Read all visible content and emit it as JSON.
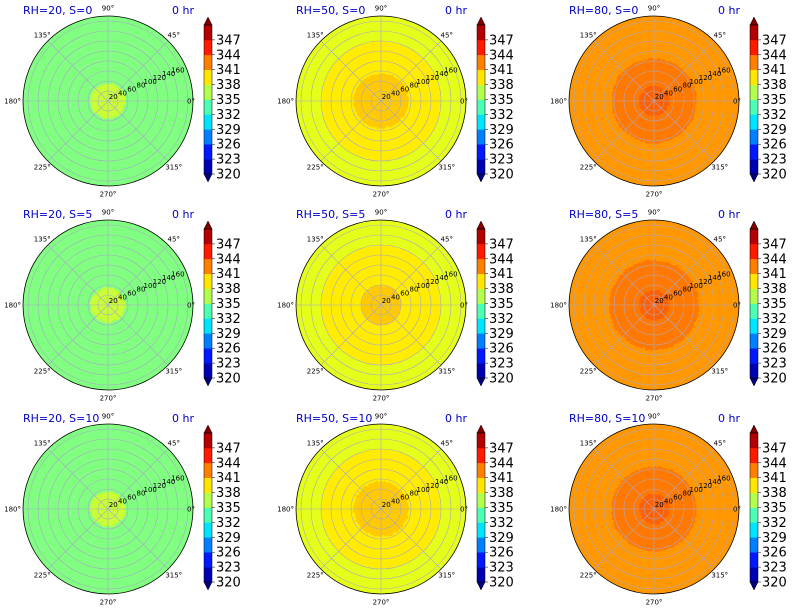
{
  "chart_data": {
    "type": "heatmap",
    "layout": "polar-grid",
    "rows": 3,
    "cols": 3,
    "angle_labels": [
      "90°",
      "45°",
      "0°",
      "315°",
      "270°",
      "225°",
      "180°",
      "135°"
    ],
    "radial_ticks": [
      20,
      40,
      60,
      80,
      100,
      120,
      140,
      160
    ],
    "radial_max": 170,
    "grid": true,
    "colorbar": {
      "ticks": [
        320,
        323,
        326,
        329,
        332,
        335,
        338,
        341,
        344,
        347
      ],
      "min": 320,
      "max": 350,
      "colormap": "jet",
      "extend": "both"
    },
    "panels": [
      {
        "title": "RH=20, S=0",
        "time": "0 hr",
        "regions": [
          {
            "r_max": 35,
            "value": 337.2
          },
          {
            "r_max": 170,
            "value": 335.0
          }
        ]
      },
      {
        "title": "RH=50, S=0",
        "time": "0 hr",
        "regions": [
          {
            "r_max": 55,
            "value": 340.3
          },
          {
            "r_max": 120,
            "value": 339.3
          },
          {
            "r_max": 170,
            "value": 338.0
          }
        ]
      },
      {
        "title": "RH=80, S=0",
        "time": "0 hr",
        "regions": [
          {
            "r_max": 30,
            "value": 343.4
          },
          {
            "r_max": 85,
            "value": 342.7
          },
          {
            "r_max": 170,
            "value": 341.8
          }
        ]
      },
      {
        "title": "RH=20, S=5",
        "time": "0 hr",
        "regions": [
          {
            "r_max": 35,
            "value": 337.2
          },
          {
            "r_max": 170,
            "value": 335.0
          }
        ]
      },
      {
        "title": "RH=50, S=5",
        "time": "0 hr",
        "regions": [
          {
            "r_max": 40,
            "value": 340.3
          },
          {
            "r_max": 120,
            "value": 339.3
          },
          {
            "r_max": 170,
            "value": 338.0
          }
        ]
      },
      {
        "title": "RH=80, S=5",
        "time": "0 hr",
        "regions": [
          {
            "r_max": 30,
            "value": 343.4
          },
          {
            "r_max": 90,
            "value": 342.7
          },
          {
            "r_max": 170,
            "value": 341.8
          }
        ]
      },
      {
        "title": "RH=20, S=10",
        "time": "0 hr",
        "regions": [
          {
            "r_max": 35,
            "value": 337.2
          },
          {
            "r_max": 170,
            "value": 335.0
          }
        ]
      },
      {
        "title": "RH=50, S=10",
        "time": "0 hr",
        "regions": [
          {
            "r_max": 55,
            "value": 340.3
          },
          {
            "r_max": 120,
            "value": 339.3
          },
          {
            "r_max": 170,
            "value": 338.0
          }
        ]
      },
      {
        "title": "RH=80, S=10",
        "time": "0 hr",
        "regions": [
          {
            "r_max": 30,
            "value": 343.4
          },
          {
            "r_max": 85,
            "value": 342.7
          },
          {
            "r_max": 170,
            "value": 341.8
          }
        ]
      }
    ]
  }
}
